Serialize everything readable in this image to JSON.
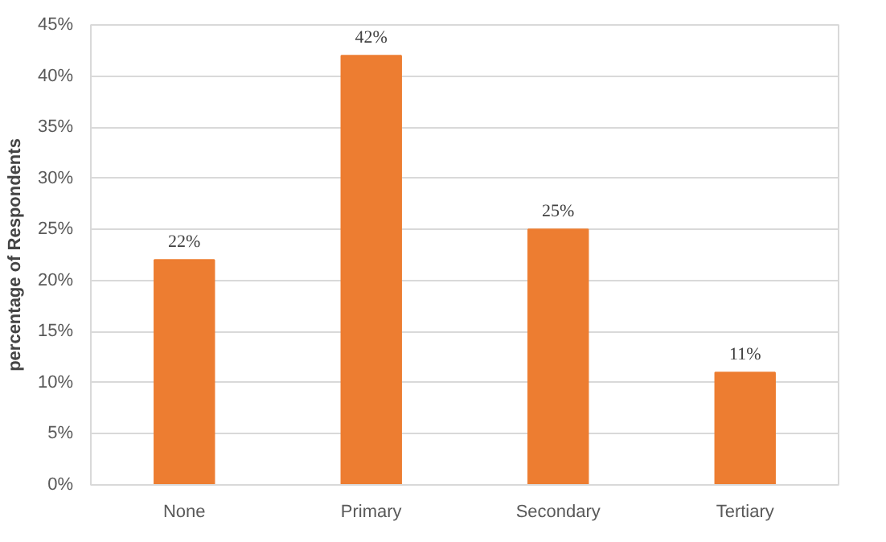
{
  "chart_data": {
    "type": "bar",
    "ylabel": "percentage of Respondents",
    "categories": [
      "None",
      "Primary",
      "Secondary",
      "Tertiary"
    ],
    "values": [
      22,
      42,
      25,
      11
    ],
    "color": "#ed7d31",
    "ylim": [
      0,
      45
    ],
    "yticks": [
      {
        "value": 0,
        "label": "0%"
      },
      {
        "value": 5,
        "label": "5%"
      },
      {
        "value": 10,
        "label": "10%"
      },
      {
        "value": 15,
        "label": "15%"
      },
      {
        "value": 20,
        "label": "20%"
      },
      {
        "value": 25,
        "label": "25%"
      },
      {
        "value": 30,
        "label": "30%"
      },
      {
        "value": 35,
        "label": "35%"
      },
      {
        "value": 40,
        "label": "40%"
      },
      {
        "value": 45,
        "label": "45%"
      }
    ],
    "value_labels": [
      "22%",
      "42%",
      "25%",
      "11%"
    ],
    "grid": "y"
  }
}
